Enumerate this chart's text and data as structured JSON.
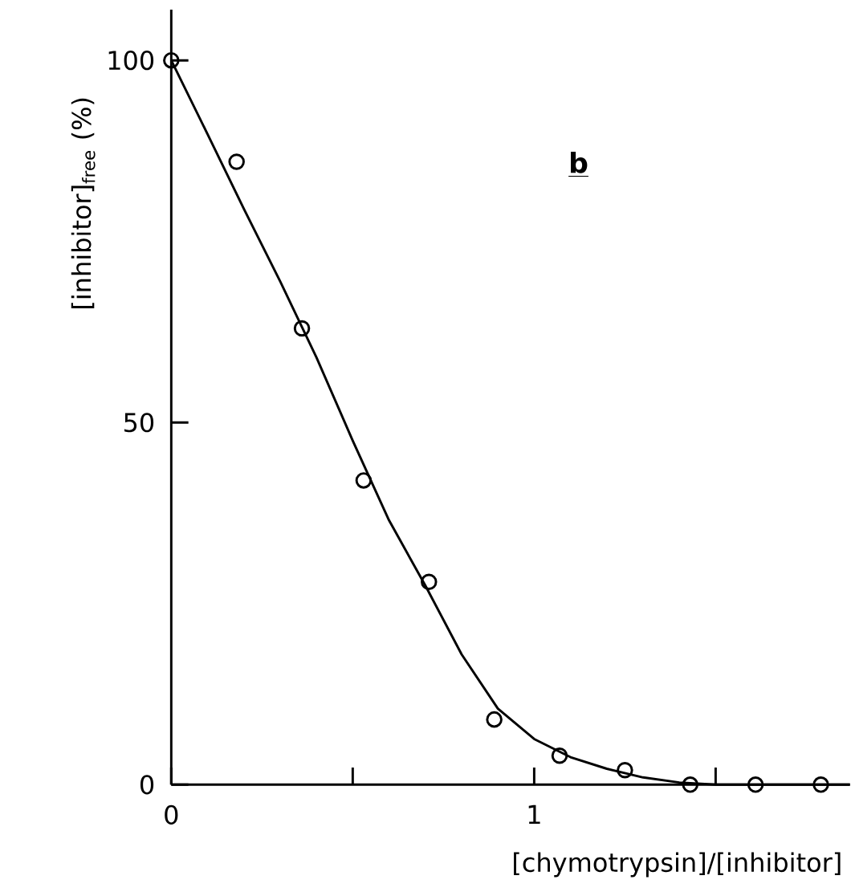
{
  "chart_data": {
    "type": "scatter",
    "xlabel": "[chymotrypsin]/[inhibitor]",
    "ylabel": "[inhibitor]$_{free}$ (%)",
    "annotations": [
      "b"
    ],
    "xlim": [
      0,
      1.87
    ],
    "ylim": [
      0,
      107
    ],
    "xticks": [
      0,
      {
        "value": 0.5,
        "label": null
      },
      1,
      {
        "value": 1.5,
        "label": null
      }
    ],
    "yticks": [
      0,
      50,
      100
    ],
    "series": [
      {
        "marker": "circle",
        "color": "#000000",
        "x": [
          0,
          0.18,
          0.36,
          0.53,
          0.71,
          0.89,
          1.07,
          1.25,
          1.43,
          1.61,
          1.79
        ],
        "values": [
          100,
          86,
          63,
          42,
          28,
          9,
          4,
          2,
          0,
          0,
          0
        ]
      },
      {
        "type": "line",
        "marker": "none",
        "line_style": "solid",
        "color": "#000000",
        "x": [
          0,
          0.1,
          0.2,
          0.3,
          0.4,
          0.5,
          0.6,
          0.7,
          0.8,
          0.9,
          1.0,
          1.1,
          1.2,
          1.3,
          1.4,
          1.5,
          1.87
        ],
        "values": [
          100,
          89.8,
          79.5,
          69.5,
          59,
          47.5,
          36.5,
          27.5,
          18,
          10.5,
          6.3,
          3.8,
          2.2,
          1.0,
          0.3,
          0,
          0
        ]
      }
    ]
  }
}
